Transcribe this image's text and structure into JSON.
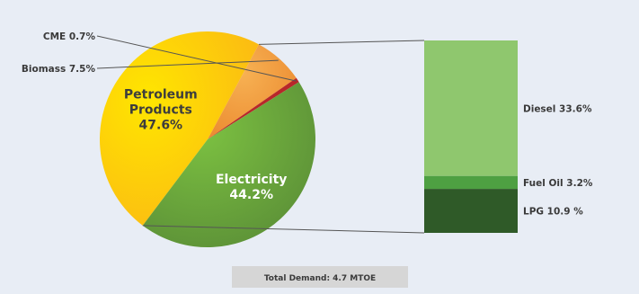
{
  "chart_data": {
    "type": "pie",
    "title": "",
    "slices": [
      {
        "label": "Petroleum Products",
        "value": 47.6,
        "display": "47.6%",
        "color": "#fcc20a"
      },
      {
        "label": "Biomass",
        "value": 7.5,
        "display": "7.5%",
        "color": "#f0962e"
      },
      {
        "label": "CME",
        "value": 0.7,
        "display": "0.7%",
        "color": "#b8272a"
      },
      {
        "label": "Electricity",
        "value": 44.2,
        "display": "44.2%",
        "color": "#6fa83e"
      }
    ],
    "breakdown": {
      "parent": "Petroleum Products",
      "type": "stacked-bar",
      "segments": [
        {
          "label": "Diesel",
          "value": 33.6,
          "display": "Diesel 33.6%",
          "color": "#8fc76e"
        },
        {
          "label": "Fuel Oil",
          "value": 3.2,
          "display": "Fuel Oil 3.2%",
          "color": "#4ea042"
        },
        {
          "label": "LPG",
          "value": 10.9,
          "display": "LPG 10.9 %",
          "color": "#2f5a28"
        }
      ]
    },
    "annotation": "Total Demand: 4.7 MTOE"
  },
  "colors": {
    "background": "#e8edf5",
    "annotation_bg": "#d6d6d6",
    "leader_line": "#555555"
  }
}
